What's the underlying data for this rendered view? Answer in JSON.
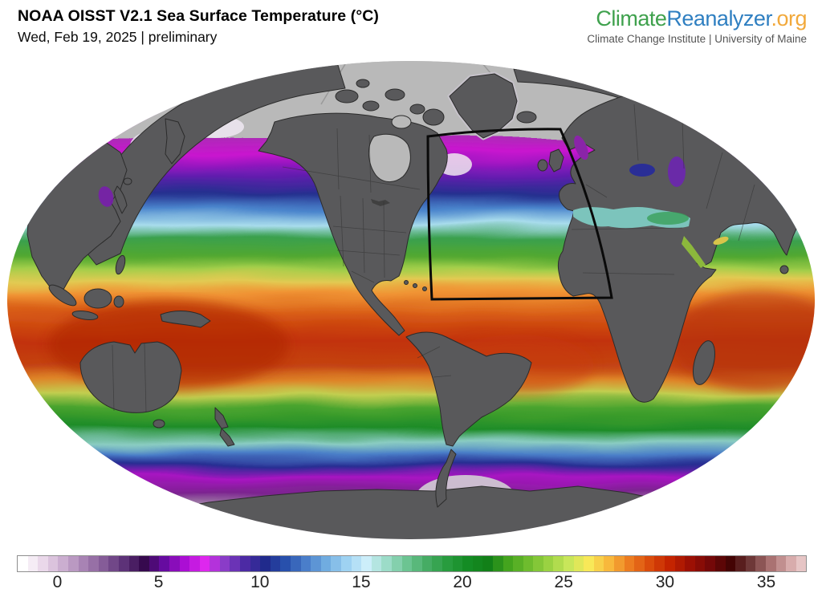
{
  "header": {
    "title": "NOAA OISST V2.1 Sea Surface Temperature (°C)",
    "subtitle": "Wed, Feb 19, 2025 | preliminary"
  },
  "branding": {
    "climate": "Climate",
    "reanalyzer": "Reanalyzer",
    "org": ".org",
    "tagline": "Climate Change Institute | University of Maine",
    "colors": {
      "climate": "#3fa14d",
      "reanalyzer": "#2f7fc1",
      "org": "#f2a93b",
      "tagline": "#555555"
    }
  },
  "map": {
    "region_box_label": "North Atlantic highlight box",
    "palette": {
      "land": "#59595b",
      "land_border": "#2b2b2b",
      "ice": "#b9b9b9",
      "ice_shelf": "#d5cbd7",
      "background": "#ffffff"
    },
    "ocean_bands": [
      [
        0.01,
        "#b4b4b4"
      ],
      [
        0.109,
        "#c9b2d2"
      ],
      [
        0.149,
        "#993aa6"
      ],
      [
        0.198,
        "#c915cf"
      ],
      [
        0.244,
        "#6a1bb2"
      ],
      [
        0.281,
        "#25308f"
      ],
      [
        0.314,
        "#4a84cc"
      ],
      [
        0.347,
        "#a8dcec"
      ],
      [
        0.378,
        "#3aa04e"
      ],
      [
        0.409,
        "#52a830"
      ],
      [
        0.436,
        "#a2ce4a"
      ],
      [
        0.462,
        "#e2ca52"
      ],
      [
        0.487,
        "#f09434"
      ],
      [
        0.528,
        "#d85c16"
      ],
      [
        0.584,
        "#c23208"
      ],
      [
        0.637,
        "#c44312"
      ],
      [
        0.667,
        "#de8428"
      ],
      [
        0.696,
        "#c2ce50"
      ],
      [
        0.724,
        "#4aa42e"
      ],
      [
        0.764,
        "#1e8c28"
      ],
      [
        0.794,
        "#8accc2"
      ],
      [
        0.817,
        "#4a7ec8"
      ],
      [
        0.84,
        "#272e92"
      ],
      [
        0.866,
        "#a814c2"
      ],
      [
        0.898,
        "#7c2390"
      ],
      [
        0.927,
        "#a286a8"
      ],
      [
        0.957,
        "#cfc2d2"
      ],
      [
        0.997,
        "#e6dee8"
      ]
    ],
    "colorbar": {
      "unit": "°C",
      "min": -2,
      "max": 37,
      "block_step": 0.5,
      "ticks": [
        0,
        5,
        10,
        15,
        20,
        25,
        30,
        35
      ],
      "anchor_colors": [
        "#ffffff",
        "#ead8ea",
        "#cbaed0",
        "#a883b4",
        "#855c98",
        "#5d3278",
        "#36094e",
        "#660ba0",
        "#ab0ed4",
        "#de27ee",
        "#8a3cc8",
        "#4c2aa4",
        "#202a8c",
        "#2850ac",
        "#4a7eca",
        "#70ace0",
        "#9ed2f2",
        "#cceefa",
        "#9cdcc8",
        "#6cc492",
        "#46ac64",
        "#289c3e",
        "#148c24",
        "#128018",
        "#44a41e",
        "#6ebc2e",
        "#9ad242",
        "#c8e65a",
        "#f8e858",
        "#f8b83c",
        "#ec7c20",
        "#da4c0c",
        "#c42400",
        "#9c1004",
        "#740808",
        "#440404",
        "#6e3838",
        "#aa7272",
        "#d8acac",
        "#f4dede"
      ]
    }
  }
}
